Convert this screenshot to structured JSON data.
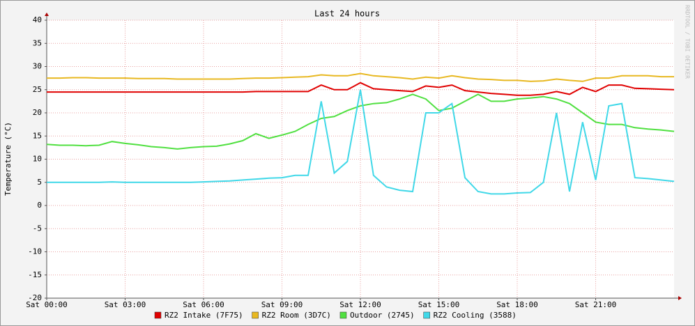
{
  "chart_data": {
    "type": "line",
    "title": "Last 24 hours",
    "y_label": "Temperature (°C)",
    "watermark": "RRDTOOL / TOBI OETIKER",
    "x": [
      0,
      0.5,
      1,
      1.5,
      2,
      2.5,
      3,
      3.5,
      4,
      4.5,
      5,
      5.5,
      6,
      6.5,
      7,
      7.5,
      8,
      8.5,
      9,
      9.5,
      10,
      10.5,
      11,
      11.5,
      12,
      12.5,
      13,
      13.5,
      14,
      14.5,
      15,
      15.5,
      16,
      16.5,
      17,
      17.5,
      18,
      18.5,
      19,
      19.5,
      20,
      20.5,
      21,
      21.5,
      22,
      22.5,
      23,
      23.5,
      24
    ],
    "xlim": [
      0,
      24
    ],
    "xticks": [
      {
        "value": 0,
        "label": "Sat 00:00"
      },
      {
        "value": 3,
        "label": "Sat 03:00"
      },
      {
        "value": 6,
        "label": "Sat 06:00"
      },
      {
        "value": 9,
        "label": "Sat 09:00"
      },
      {
        "value": 12,
        "label": "Sat 12:00"
      },
      {
        "value": 15,
        "label": "Sat 15:00"
      },
      {
        "value": 18,
        "label": "Sat 18:00"
      },
      {
        "value": 21,
        "label": "Sat 21:00"
      }
    ],
    "ylim": [
      -20,
      40
    ],
    "yticks": [
      -20,
      -15,
      -10,
      -5,
      0,
      5,
      10,
      15,
      20,
      25,
      30,
      35,
      40
    ],
    "grid": true,
    "series": [
      {
        "name": "RZ2 Intake (7F75)",
        "color": "#e00000",
        "values": [
          24.5,
          24.5,
          24.5,
          24.5,
          24.5,
          24.5,
          24.5,
          24.5,
          24.5,
          24.5,
          24.5,
          24.5,
          24.5,
          24.5,
          24.5,
          24.5,
          24.6,
          24.6,
          24.6,
          24.6,
          24.6,
          26,
          25,
          25,
          26.5,
          25.2,
          25,
          24.8,
          24.6,
          25.8,
          25.5,
          26,
          24.8,
          24.5,
          24.2,
          24,
          23.8,
          23.8,
          24,
          24.6,
          24,
          25.5,
          24.6,
          26,
          26,
          25.3,
          25.2,
          25.1,
          25
        ]
      },
      {
        "name": "RZ2 Room (3D7C)",
        "color": "#e8b820",
        "values": [
          27.5,
          27.5,
          27.6,
          27.6,
          27.5,
          27.5,
          27.5,
          27.4,
          27.4,
          27.4,
          27.3,
          27.3,
          27.3,
          27.3,
          27.3,
          27.4,
          27.5,
          27.5,
          27.6,
          27.7,
          27.8,
          28.2,
          28,
          28,
          28.5,
          28,
          27.8,
          27.6,
          27.3,
          27.7,
          27.5,
          28,
          27.6,
          27.3,
          27.2,
          27,
          27,
          26.8,
          26.9,
          27.3,
          27,
          26.8,
          27.5,
          27.5,
          28,
          28,
          28,
          27.8,
          27.8
        ]
      },
      {
        "name": "Outdoor (2745)",
        "color": "#50e040",
        "values": [
          13.2,
          13,
          13,
          12.9,
          13,
          13.8,
          13.4,
          13.1,
          12.7,
          12.5,
          12.2,
          12.5,
          12.7,
          12.8,
          13.3,
          14,
          15.5,
          14.5,
          15.2,
          16,
          17.5,
          18.8,
          19.2,
          20.5,
          21.5,
          22,
          22.2,
          23,
          24,
          23,
          20.5,
          21,
          22.5,
          24,
          22.5,
          22.5,
          23,
          23.2,
          23.5,
          23,
          22,
          20,
          18,
          17.5,
          17.5,
          16.8,
          16.5,
          16.3,
          16
        ]
      },
      {
        "name": "RZ2 Cooling (3588)",
        "color": "#40d8e8",
        "values": [
          5,
          5,
          5,
          5,
          5,
          5.1,
          5,
          5,
          5,
          5,
          5,
          5,
          5.1,
          5.2,
          5.3,
          5.5,
          5.7,
          5.9,
          6,
          6.5,
          6.5,
          22.5,
          7,
          9.5,
          25,
          6.5,
          4,
          3.3,
          3,
          20,
          20,
          22,
          6,
          3,
          2.5,
          2.5,
          2.7,
          2.8,
          5,
          20,
          3,
          18,
          5.5,
          21.5,
          22,
          6,
          5.8,
          5.5,
          5.2
        ]
      }
    ]
  }
}
